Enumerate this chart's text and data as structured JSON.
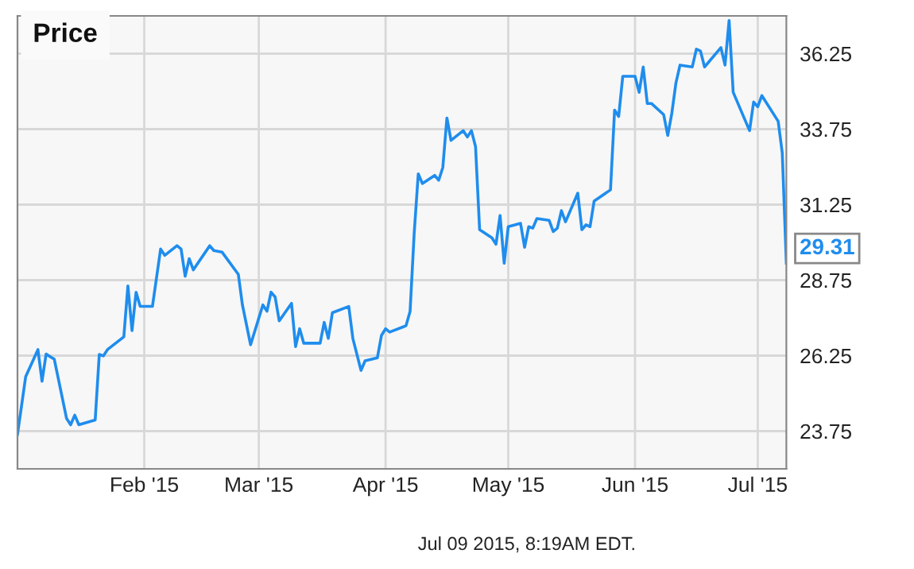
{
  "chart_data": {
    "type": "line",
    "title": "Price",
    "x": [
      "2015-01-01",
      "2015-01-03",
      "2015-01-06",
      "2015-01-07",
      "2015-01-08",
      "2015-01-10",
      "2015-01-13",
      "2015-01-14",
      "2015-01-15",
      "2015-01-16",
      "2015-01-20",
      "2015-01-21",
      "2015-01-22",
      "2015-01-23",
      "2015-01-27",
      "2015-01-28",
      "2015-01-29",
      "2015-01-30",
      "2015-01-31",
      "2015-02-03",
      "2015-02-05",
      "2015-02-06",
      "2015-02-09",
      "2015-02-10",
      "2015-02-11",
      "2015-02-12",
      "2015-02-13",
      "2015-02-17",
      "2015-02-18",
      "2015-02-20",
      "2015-02-24",
      "2015-02-25",
      "2015-02-27",
      "2015-03-02",
      "2015-03-03",
      "2015-03-04",
      "2015-03-05",
      "2015-03-06",
      "2015-03-09",
      "2015-03-10",
      "2015-03-11",
      "2015-03-12",
      "2015-03-16",
      "2015-03-17",
      "2015-03-18",
      "2015-03-19",
      "2015-03-23",
      "2015-03-24",
      "2015-03-26",
      "2015-03-27",
      "2015-03-30",
      "2015-03-31",
      "2015-04-01",
      "2015-04-02",
      "2015-04-06",
      "2015-04-07",
      "2015-04-08",
      "2015-04-09",
      "2015-04-10",
      "2015-04-13",
      "2015-04-14",
      "2015-04-15",
      "2015-04-16",
      "2015-04-17",
      "2015-04-20",
      "2015-04-21",
      "2015-04-22",
      "2015-04-23",
      "2015-04-24",
      "2015-04-27",
      "2015-04-28",
      "2015-04-29",
      "2015-04-30",
      "2015-05-01",
      "2015-05-04",
      "2015-05-05",
      "2015-05-06",
      "2015-05-07",
      "2015-05-08",
      "2015-05-11",
      "2015-05-12",
      "2015-05-13",
      "2015-05-14",
      "2015-05-15",
      "2015-05-18",
      "2015-05-19",
      "2015-05-20",
      "2015-05-21",
      "2015-05-22",
      "2015-05-26",
      "2015-05-27",
      "2015-05-28",
      "2015-05-29",
      "2015-06-01",
      "2015-06-02",
      "2015-06-03",
      "2015-06-04",
      "2015-06-05",
      "2015-06-08",
      "2015-06-09",
      "2015-06-10",
      "2015-06-11",
      "2015-06-12",
      "2015-06-15",
      "2015-06-16",
      "2015-06-17",
      "2015-06-18",
      "2015-06-22",
      "2015-06-23",
      "2015-06-24",
      "2015-06-25",
      "2015-06-29",
      "2015-06-30",
      "2015-07-01",
      "2015-07-02",
      "2015-07-06",
      "2015-07-07",
      "2015-07-08"
    ],
    "series": [
      {
        "color": "#1f8ded",
        "values": [
          23.64,
          25.55,
          26.45,
          25.4,
          26.3,
          26.13,
          24.17,
          23.96,
          24.28,
          23.96,
          24.12,
          26.29,
          26.24,
          26.45,
          26.87,
          28.56,
          27.08,
          28.35,
          27.88,
          27.88,
          29.78,
          29.57,
          29.89,
          29.78,
          28.88,
          29.46,
          29.09,
          29.89,
          29.73,
          29.68,
          28.94,
          27.93,
          26.61,
          27.93,
          27.72,
          28.35,
          28.19,
          27.4,
          27.98,
          26.55,
          27.14,
          26.66,
          26.66,
          27.35,
          26.82,
          27.67,
          27.88,
          26.82,
          25.76,
          26.08,
          26.18,
          26.92,
          27.14,
          27.03,
          27.24,
          27.72,
          30.31,
          32.27,
          31.95,
          32.22,
          32.06,
          32.48,
          34.12,
          33.38,
          33.7,
          33.49,
          33.7,
          33.17,
          30.42,
          30.15,
          29.94,
          30.89,
          29.31,
          30.52,
          30.63,
          29.84,
          30.52,
          30.47,
          30.79,
          30.73,
          30.36,
          30.47,
          31.05,
          30.68,
          31.63,
          30.42,
          30.58,
          30.52,
          31.37,
          31.74,
          34.38,
          34.17,
          35.5,
          35.5,
          34.97,
          35.81,
          34.6,
          34.6,
          34.23,
          33.54,
          34.28,
          35.28,
          35.87,
          35.81,
          36.4,
          36.34,
          35.81,
          36.45,
          35.87,
          37.35,
          34.97,
          33.7,
          34.65,
          34.49,
          34.86,
          34.01,
          32.96,
          29.31
        ]
      }
    ],
    "xlim": [
      "2015-01-01",
      "2015-07-08"
    ],
    "xticks": [
      {
        "value": "2015-02-01",
        "label": "Feb '15"
      },
      {
        "value": "2015-03-01",
        "label": "Mar '15"
      },
      {
        "value": "2015-04-01",
        "label": "Apr '15"
      },
      {
        "value": "2015-05-01",
        "label": "May '15"
      },
      {
        "value": "2015-06-01",
        "label": "Jun '15"
      },
      {
        "value": "2015-07-01",
        "label": "Jul '15"
      }
    ],
    "ylim": [
      22.5,
      37.5
    ],
    "yticks": [
      23.75,
      26.25,
      28.75,
      31.25,
      33.75,
      36.25
    ],
    "grid": true,
    "legend": false,
    "marker": "none",
    "line_style": "solid",
    "annotations": [
      {
        "text": "29.31",
        "x": "2015-07-08",
        "y": 29.31
      },
      "Jul 09 2015, 8:19AM EDT."
    ]
  }
}
